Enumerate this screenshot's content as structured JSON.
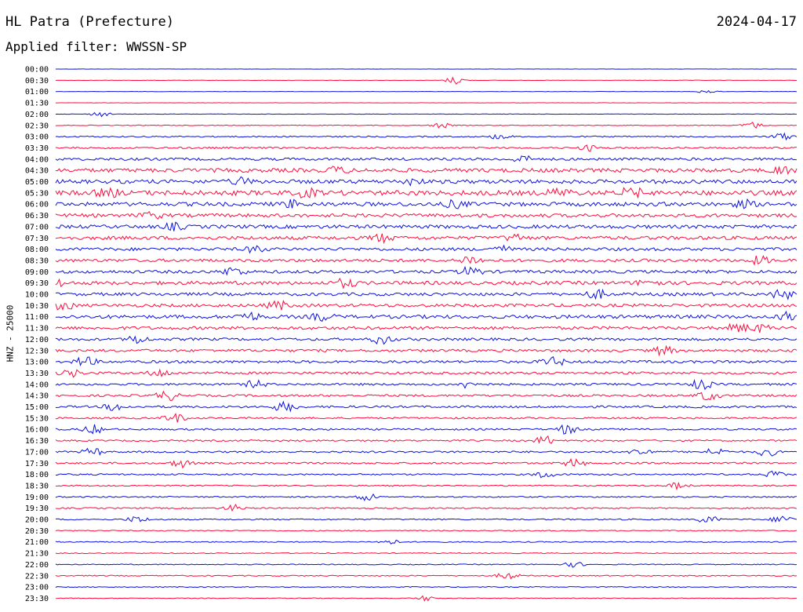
{
  "header": {
    "station": "HL Patra (Prefecture)",
    "date": "2024-04-17",
    "filter": "Applied filter: WWSSN-SP"
  },
  "colors": {
    "even": "#0a10e0",
    "odd": "#ff0a3c"
  },
  "chart_data": {
    "type": "line",
    "title": "HL Patra (Prefecture)",
    "subtitle": "Applied filter: WWSSN-SP",
    "ylabel": "HNZ - 25000",
    "xlabel": "",
    "grid": false,
    "rows": [
      "00:00",
      "00:30",
      "01:00",
      "01:30",
      "02:00",
      "02:30",
      "03:00",
      "03:30",
      "04:00",
      "04:30",
      "05:00",
      "05:30",
      "06:00",
      "06:30",
      "07:00",
      "07:30",
      "08:00",
      "08:30",
      "09:00",
      "09:30",
      "10:00",
      "10:30",
      "11:00",
      "11:30",
      "12:00",
      "12:30",
      "13:00",
      "13:30",
      "14:00",
      "14:30",
      "15:00",
      "15:30",
      "16:00",
      "16:30",
      "17:00",
      "17:30",
      "18:00",
      "18:30",
      "19:00",
      "19:30",
      "20:00",
      "20:30",
      "21:00",
      "21:30",
      "22:00",
      "22:30",
      "23:00",
      "23:30"
    ],
    "series_colors": [
      "#0a10e0",
      "#ff0a3c"
    ],
    "noise_level": [
      0.3,
      0.4,
      0.3,
      0.3,
      0.5,
      0.8,
      1.5,
      2.0,
      3.0,
      4.5,
      4.5,
      5.5,
      4.5,
      4.0,
      4.0,
      4.0,
      3.5,
      3.5,
      3.5,
      4.0,
      3.5,
      3.5,
      4.0,
      3.5,
      3.0,
      3.0,
      3.0,
      2.8,
      2.5,
      2.5,
      2.5,
      2.0,
      2.0,
      1.8,
      2.0,
      2.0,
      1.8,
      1.5,
      1.5,
      1.5,
      1.5,
      1.2,
      1.2,
      1.0,
      1.0,
      1.2,
      1.0,
      0.8
    ],
    "events": [
      [],
      [
        [
          0.54,
          6
        ]
      ],
      [
        [
          0.88,
          3
        ]
      ],
      [],
      [
        [
          0.06,
          4
        ]
      ],
      [
        [
          0.52,
          4
        ],
        [
          0.94,
          5
        ]
      ],
      [
        [
          0.6,
          4
        ],
        [
          0.98,
          5
        ]
      ],
      [
        [
          0.72,
          4
        ]
      ],
      [
        [
          0.63,
          5
        ]
      ],
      [
        [
          0.38,
          5
        ],
        [
          0.98,
          6
        ]
      ],
      [
        [
          0.25,
          5
        ],
        [
          0.48,
          4
        ]
      ],
      [
        [
          0.07,
          8
        ],
        [
          0.34,
          8
        ],
        [
          0.68,
          10
        ],
        [
          0.78,
          18
        ]
      ],
      [
        [
          0.32,
          8
        ],
        [
          0.54,
          6
        ],
        [
          0.93,
          5
        ]
      ],
      [
        [
          0.13,
          5
        ]
      ],
      [
        [
          0.16,
          5
        ]
      ],
      [
        [
          0.44,
          7
        ],
        [
          0.62,
          5
        ]
      ],
      [
        [
          0.27,
          5
        ],
        [
          0.6,
          5
        ]
      ],
      [
        [
          0.56,
          8
        ],
        [
          0.95,
          6
        ]
      ],
      [
        [
          0.24,
          8
        ],
        [
          0.56,
          8
        ]
      ],
      [
        [
          0.0,
          7
        ],
        [
          0.39,
          8
        ],
        [
          0.8,
          7
        ]
      ],
      [
        [
          0.73,
          7
        ],
        [
          0.98,
          8
        ]
      ],
      [
        [
          0.01,
          7
        ],
        [
          0.3,
          7
        ]
      ],
      [
        [
          0.26,
          8
        ],
        [
          0.36,
          6
        ],
        [
          0.99,
          8
        ]
      ],
      [
        [
          0.92,
          7
        ],
        [
          0.95,
          6
        ]
      ],
      [
        [
          0.11,
          7
        ],
        [
          0.44,
          8
        ]
      ],
      [
        [
          0.82,
          7
        ]
      ],
      [
        [
          0.04,
          8
        ],
        [
          0.67,
          10
        ]
      ],
      [
        [
          0.02,
          6
        ],
        [
          0.14,
          6
        ]
      ],
      [
        [
          0.27,
          6
        ],
        [
          0.56,
          7
        ],
        [
          0.87,
          10
        ]
      ],
      [
        [
          0.15,
          9
        ],
        [
          0.88,
          9
        ]
      ],
      [
        [
          0.08,
          6
        ],
        [
          0.31,
          10
        ]
      ],
      [
        [
          0.16,
          8
        ]
      ],
      [
        [
          0.05,
          7
        ],
        [
          0.69,
          8
        ]
      ],
      [
        [
          0.66,
          7
        ]
      ],
      [
        [
          0.05,
          6
        ],
        [
          0.79,
          6
        ],
        [
          0.89,
          6
        ],
        [
          0.96,
          7
        ]
      ],
      [
        [
          0.17,
          7
        ],
        [
          0.7,
          7
        ]
      ],
      [
        [
          0.66,
          6
        ],
        [
          0.97,
          5
        ]
      ],
      [
        [
          0.84,
          5
        ]
      ],
      [
        [
          0.42,
          6
        ]
      ],
      [
        [
          0.24,
          5
        ]
      ],
      [
        [
          0.11,
          5
        ],
        [
          0.88,
          6
        ],
        [
          0.98,
          6
        ]
      ],
      [],
      [
        [
          0.45,
          4
        ]
      ],
      [],
      [
        [
          0.7,
          4
        ]
      ],
      [
        [
          0.61,
          6
        ]
      ],
      [],
      [
        [
          0.5,
          4
        ]
      ]
    ]
  }
}
